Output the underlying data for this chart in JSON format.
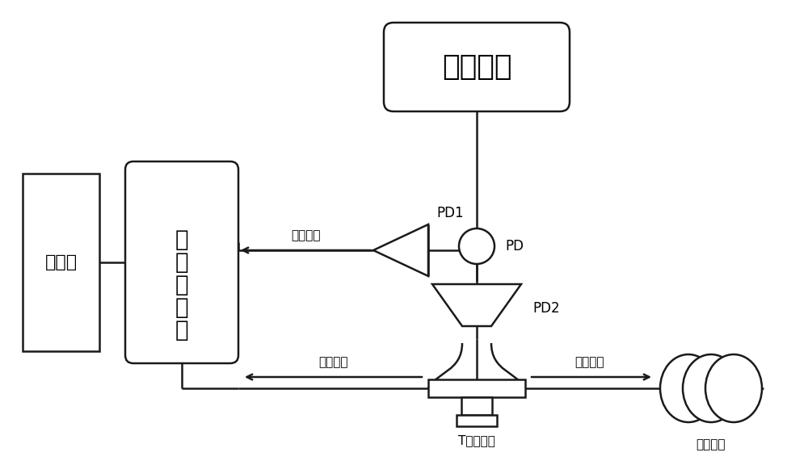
{
  "bg_color": "#ffffff",
  "line_color": "#1a1a1a",
  "line_width": 1.8,
  "labels": {
    "chaotic_source": "电混沌源",
    "computer": "计算机",
    "data_card_1": "数据",
    "data_card_2": "采集",
    "data_card_3": "卡",
    "pd_label": "PD",
    "pd1_label": "PD1",
    "pd2_label": "PD2",
    "ref_signal": "参考信号",
    "base_signal": "基底信号",
    "reflect_signal": "反射信号",
    "t_connector": "T型连接器",
    "cable": "被测电缆"
  },
  "fig_w": 10.0,
  "fig_h": 5.76,
  "dpi": 100
}
